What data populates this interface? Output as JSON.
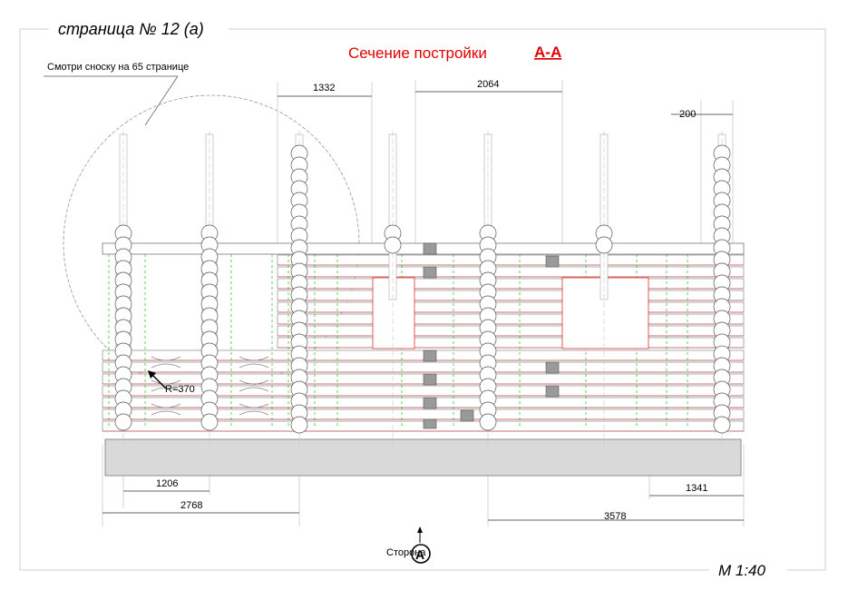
{
  "sheet": {
    "page_label": "страница  № 12 (а)",
    "title": "Сечение постройки",
    "section_mark": "А-А",
    "footnote": "Смотри сноску на 65 странице",
    "scale": "М 1:40",
    "side_label": "Сторона",
    "side_letter": "А"
  },
  "dimensions": {
    "top_left": "1332",
    "top_mid": "2064",
    "top_right": "200",
    "radius": "R=370",
    "bottom_1": "1206",
    "bottom_2": "2768",
    "bottom_3": "1341",
    "bottom_4": "3578"
  },
  "colors": {
    "title": "#e00000",
    "log_outline": "#555555",
    "guide_green": "#22bb22",
    "guide_red": "#dd2222",
    "foundation": "#d9d9d9",
    "dark_block": "#9a9a9a"
  }
}
